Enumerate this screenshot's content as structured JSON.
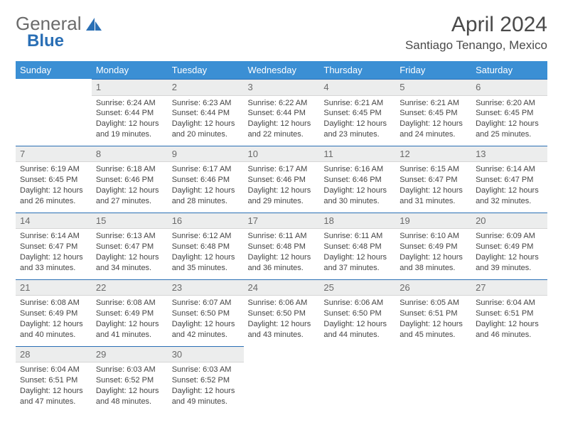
{
  "brand": {
    "part1": "General",
    "part2": "Blue"
  },
  "title": "April 2024",
  "location": "Santiago Tenango, Mexico",
  "colors": {
    "header_bg": "#3b8fd4",
    "accent": "#2a6fb5",
    "daynum_bg": "#eceded"
  },
  "weekdays": [
    "Sunday",
    "Monday",
    "Tuesday",
    "Wednesday",
    "Thursday",
    "Friday",
    "Saturday"
  ],
  "cells": [
    {
      "blank": true
    },
    {
      "n": "1",
      "sr": "6:24 AM",
      "ss": "6:44 PM",
      "dl": "12 hours and 19 minutes."
    },
    {
      "n": "2",
      "sr": "6:23 AM",
      "ss": "6:44 PM",
      "dl": "12 hours and 20 minutes."
    },
    {
      "n": "3",
      "sr": "6:22 AM",
      "ss": "6:44 PM",
      "dl": "12 hours and 22 minutes."
    },
    {
      "n": "4",
      "sr": "6:21 AM",
      "ss": "6:45 PM",
      "dl": "12 hours and 23 minutes."
    },
    {
      "n": "5",
      "sr": "6:21 AM",
      "ss": "6:45 PM",
      "dl": "12 hours and 24 minutes."
    },
    {
      "n": "6",
      "sr": "6:20 AM",
      "ss": "6:45 PM",
      "dl": "12 hours and 25 minutes."
    },
    {
      "n": "7",
      "sr": "6:19 AM",
      "ss": "6:45 PM",
      "dl": "12 hours and 26 minutes."
    },
    {
      "n": "8",
      "sr": "6:18 AM",
      "ss": "6:46 PM",
      "dl": "12 hours and 27 minutes."
    },
    {
      "n": "9",
      "sr": "6:17 AM",
      "ss": "6:46 PM",
      "dl": "12 hours and 28 minutes."
    },
    {
      "n": "10",
      "sr": "6:17 AM",
      "ss": "6:46 PM",
      "dl": "12 hours and 29 minutes."
    },
    {
      "n": "11",
      "sr": "6:16 AM",
      "ss": "6:46 PM",
      "dl": "12 hours and 30 minutes."
    },
    {
      "n": "12",
      "sr": "6:15 AM",
      "ss": "6:47 PM",
      "dl": "12 hours and 31 minutes."
    },
    {
      "n": "13",
      "sr": "6:14 AM",
      "ss": "6:47 PM",
      "dl": "12 hours and 32 minutes."
    },
    {
      "n": "14",
      "sr": "6:14 AM",
      "ss": "6:47 PM",
      "dl": "12 hours and 33 minutes."
    },
    {
      "n": "15",
      "sr": "6:13 AM",
      "ss": "6:47 PM",
      "dl": "12 hours and 34 minutes."
    },
    {
      "n": "16",
      "sr": "6:12 AM",
      "ss": "6:48 PM",
      "dl": "12 hours and 35 minutes."
    },
    {
      "n": "17",
      "sr": "6:11 AM",
      "ss": "6:48 PM",
      "dl": "12 hours and 36 minutes."
    },
    {
      "n": "18",
      "sr": "6:11 AM",
      "ss": "6:48 PM",
      "dl": "12 hours and 37 minutes."
    },
    {
      "n": "19",
      "sr": "6:10 AM",
      "ss": "6:49 PM",
      "dl": "12 hours and 38 minutes."
    },
    {
      "n": "20",
      "sr": "6:09 AM",
      "ss": "6:49 PM",
      "dl": "12 hours and 39 minutes."
    },
    {
      "n": "21",
      "sr": "6:08 AM",
      "ss": "6:49 PM",
      "dl": "12 hours and 40 minutes."
    },
    {
      "n": "22",
      "sr": "6:08 AM",
      "ss": "6:49 PM",
      "dl": "12 hours and 41 minutes."
    },
    {
      "n": "23",
      "sr": "6:07 AM",
      "ss": "6:50 PM",
      "dl": "12 hours and 42 minutes."
    },
    {
      "n": "24",
      "sr": "6:06 AM",
      "ss": "6:50 PM",
      "dl": "12 hours and 43 minutes."
    },
    {
      "n": "25",
      "sr": "6:06 AM",
      "ss": "6:50 PM",
      "dl": "12 hours and 44 minutes."
    },
    {
      "n": "26",
      "sr": "6:05 AM",
      "ss": "6:51 PM",
      "dl": "12 hours and 45 minutes."
    },
    {
      "n": "27",
      "sr": "6:04 AM",
      "ss": "6:51 PM",
      "dl": "12 hours and 46 minutes."
    },
    {
      "n": "28",
      "sr": "6:04 AM",
      "ss": "6:51 PM",
      "dl": "12 hours and 47 minutes."
    },
    {
      "n": "29",
      "sr": "6:03 AM",
      "ss": "6:52 PM",
      "dl": "12 hours and 48 minutes."
    },
    {
      "n": "30",
      "sr": "6:03 AM",
      "ss": "6:52 PM",
      "dl": "12 hours and 49 minutes."
    },
    {
      "blank": true
    },
    {
      "blank": true
    },
    {
      "blank": true
    },
    {
      "blank": true
    }
  ],
  "labels": {
    "sunrise": "Sunrise:",
    "sunset": "Sunset:",
    "daylight": "Daylight:"
  }
}
